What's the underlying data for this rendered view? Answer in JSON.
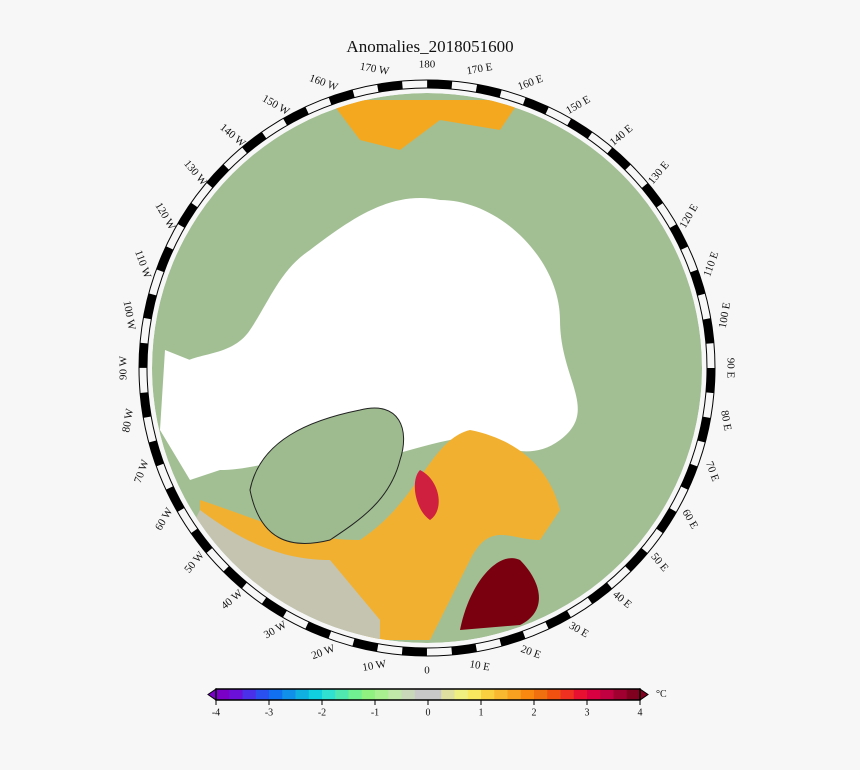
{
  "title": "Anomalies_2018051600",
  "map": {
    "longitude_labels": [
      "0",
      "10 E",
      "20 E",
      "30 E",
      "40 E",
      "50 E",
      "60 E",
      "70 E",
      "80 E",
      "90 E",
      "100 E",
      "110 E",
      "120 E",
      "130 E",
      "140 E",
      "150 E",
      "160 E",
      "170 E",
      "180",
      "170 W",
      "160 W",
      "150 W",
      "140 W",
      "130 W",
      "120 W",
      "110 W",
      "100 W",
      "90 W",
      "80 W",
      "70 W",
      "60 W",
      "50 W",
      "40 W",
      "30 W",
      "20 W",
      "10 W"
    ]
  },
  "colorbar": {
    "ticks": [
      -4,
      -3,
      -2,
      -1,
      0,
      1,
      2,
      3,
      4
    ],
    "unit": "°C",
    "colors": [
      "#7a00c8",
      "#6a10d8",
      "#4a30e8",
      "#2a50f0",
      "#1070f0",
      "#1090e8",
      "#10b0e0",
      "#10d0e0",
      "#30e0d0",
      "#50e8b0",
      "#70f090",
      "#90f080",
      "#a8f090",
      "#c0e8a8",
      "#c8d8b8",
      "#c8c8c8",
      "#c8c8c8",
      "#e0e0a0",
      "#f0f080",
      "#f8e860",
      "#f8d040",
      "#f8b830",
      "#f8a020",
      "#f88810",
      "#f07010",
      "#f05010",
      "#f03020",
      "#e81030",
      "#d80040",
      "#c00040",
      "#a00030",
      "#800020"
    ]
  }
}
